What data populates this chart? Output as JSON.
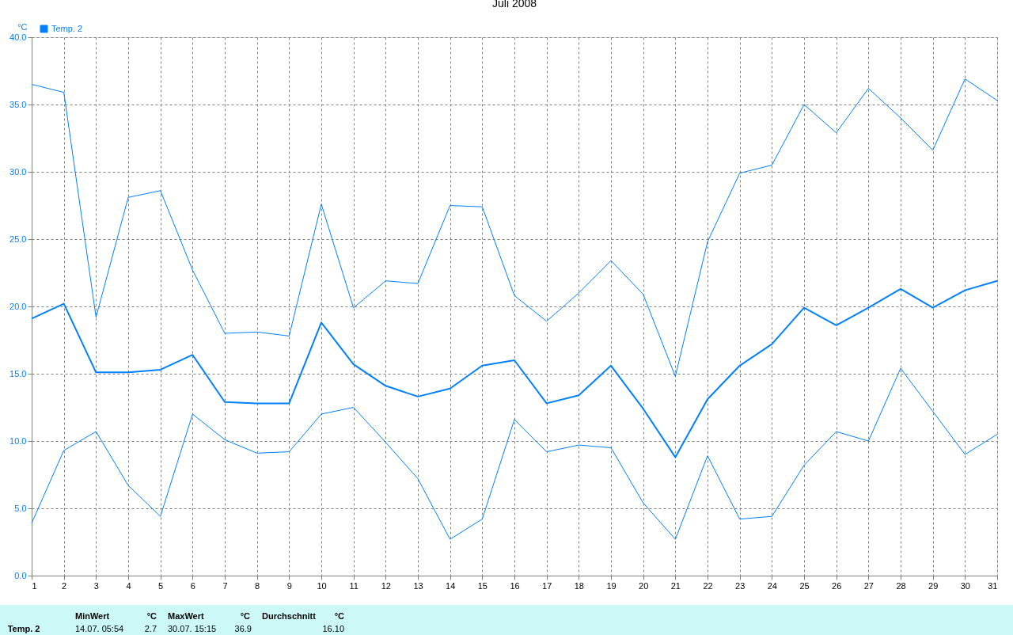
{
  "chart_data": {
    "type": "line",
    "title": "Juli 2008",
    "ylabel": "°C",
    "x": [
      1,
      2,
      3,
      4,
      5,
      6,
      7,
      8,
      9,
      10,
      11,
      12,
      13,
      14,
      15,
      16,
      17,
      18,
      19,
      20,
      21,
      22,
      23,
      24,
      25,
      26,
      27,
      28,
      29,
      30,
      31
    ],
    "series": [
      {
        "color": "#0080ff",
        "values": [
          36.5,
          35.9,
          19.2,
          28.1,
          28.6,
          22.7,
          18.0,
          18.1,
          17.8,
          27.6,
          19.9,
          21.9,
          21.7,
          27.5,
          27.4,
          20.8,
          18.9,
          21.0,
          23.4,
          20.9,
          14.8,
          24.8,
          29.9,
          30.5,
          35.0,
          32.9,
          36.2,
          34.0,
          31.6,
          36.9,
          35.3
        ]
      },
      {
        "name": "Temp. 2",
        "color": "#0080ff",
        "values": [
          19.1,
          20.2,
          15.1,
          15.1,
          15.3,
          16.4,
          12.9,
          12.8,
          12.8,
          18.8,
          15.7,
          14.1,
          13.3,
          13.9,
          15.6,
          16.0,
          12.8,
          13.4,
          15.6,
          12.4,
          8.8,
          13.1,
          15.6,
          17.2,
          19.9,
          18.6,
          19.9,
          21.3,
          19.9,
          21.2,
          21.9
        ]
      },
      {
        "color": "#0080ff",
        "values": [
          3.9,
          9.3,
          10.7,
          6.7,
          4.4,
          12.0,
          10.1,
          9.1,
          9.2,
          12.0,
          12.5,
          9.9,
          7.2,
          2.7,
          4.2,
          11.6,
          9.2,
          9.7,
          9.5,
          5.4,
          2.7,
          8.9,
          4.2,
          4.4,
          8.2,
          10.7,
          10.0,
          15.4,
          12.2,
          9.0,
          10.5
        ]
      }
    ],
    "xlim": [
      1,
      31
    ],
    "xticks": [
      1,
      2,
      3,
      4,
      5,
      6,
      7,
      8,
      9,
      10,
      11,
      12,
      13,
      14,
      15,
      16,
      17,
      18,
      19,
      20,
      21,
      22,
      23,
      24,
      25,
      26,
      27,
      28,
      29,
      30,
      31
    ],
    "ylim": [
      0,
      40
    ],
    "yticks": [
      {
        "value": 0,
        "label": "0.0"
      },
      {
        "value": 5,
        "label": "5.0"
      },
      {
        "value": 10,
        "label": "10.0"
      },
      {
        "value": 15,
        "label": "15.0"
      },
      {
        "value": 20,
        "label": "20.0"
      },
      {
        "value": 25,
        "label": "25.0"
      },
      {
        "value": 30,
        "label": "30.0"
      },
      {
        "value": 35,
        "label": "35.0"
      },
      {
        "value": 40,
        "label": "40.0"
      }
    ],
    "grid": true,
    "legend": "top left",
    "annotations": [
      "Temp. 2",
      "MinWert",
      "°C",
      "14.07.  05:54",
      "2.7",
      "MaxWert",
      "°C",
      "30.07.  15:15",
      "36.9",
      "Durchschnitt",
      "°C",
      "16.10"
    ]
  }
}
